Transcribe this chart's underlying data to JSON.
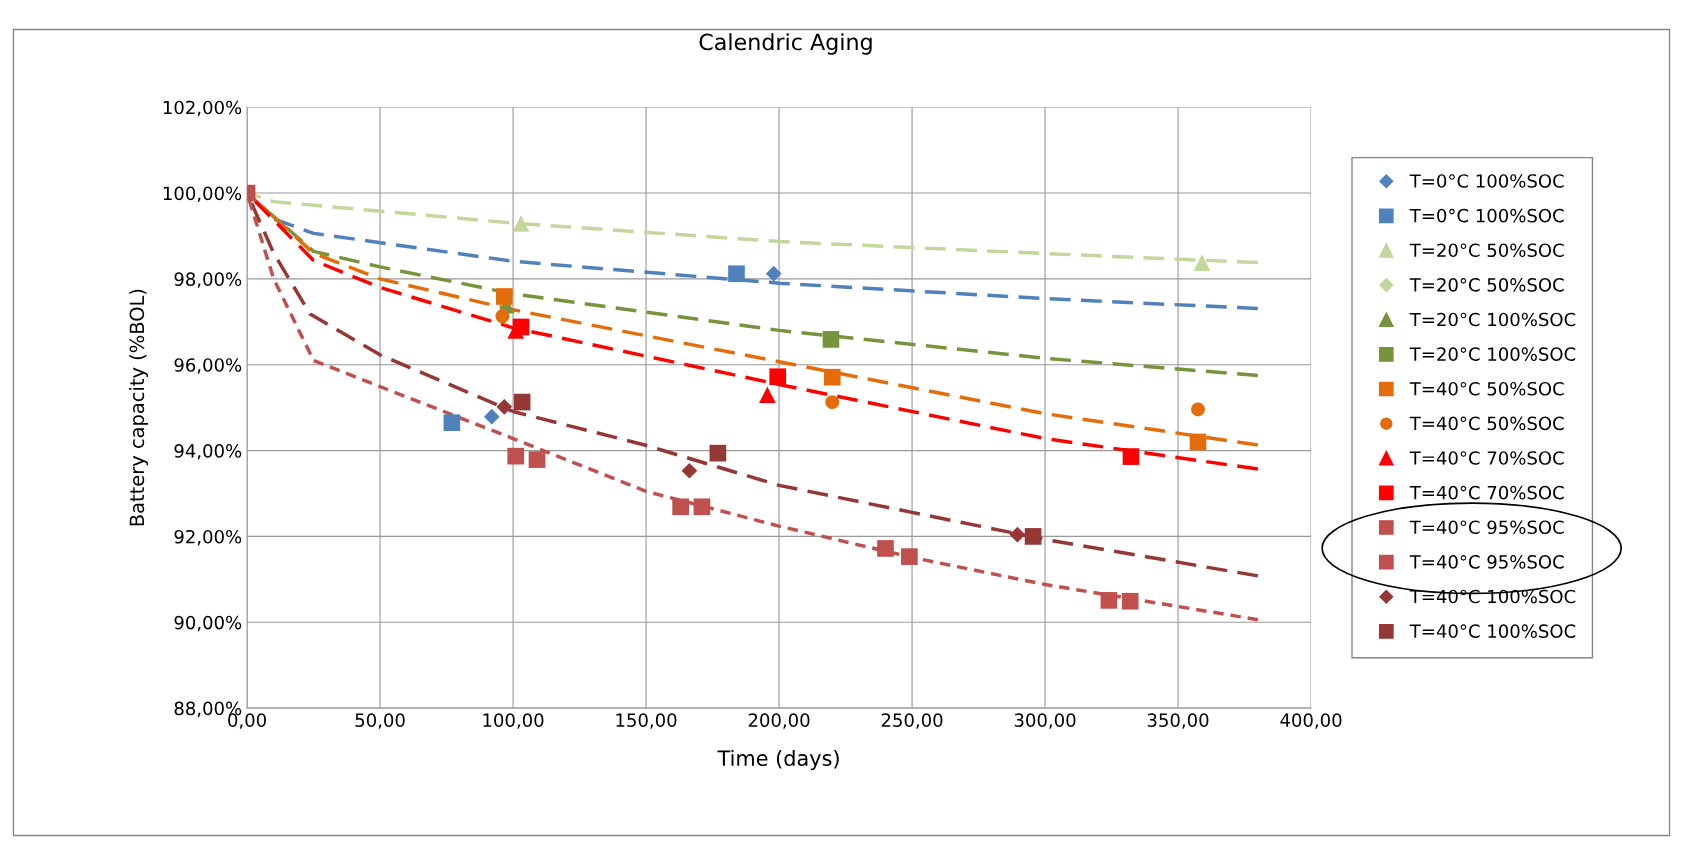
{
  "chart_data": {
    "type": "scatter",
    "title": "Calendric Aging",
    "xlabel": "Time (days)",
    "ylabel": "Battery capacity (%BOL)",
    "xlim": [
      0,
      400
    ],
    "xticks": [
      {
        "value": 0,
        "label": "0,00"
      },
      {
        "value": 50,
        "label": "50,00"
      },
      {
        "value": 100,
        "label": "100,00"
      },
      {
        "value": 150,
        "label": "150,00"
      },
      {
        "value": 200,
        "label": "200,00"
      },
      {
        "value": 250,
        "label": "250,00"
      },
      {
        "value": 300,
        "label": "300,00"
      },
      {
        "value": 350,
        "label": "350,00"
      },
      {
        "value": 400,
        "label": "400,00"
      }
    ],
    "ylim": [
      88,
      102
    ],
    "yticks": [
      {
        "value": 88,
        "label": "88,00%"
      },
      {
        "value": 90,
        "label": "90,00%"
      },
      {
        "value": 92,
        "label": "92,00%"
      },
      {
        "value": 94,
        "label": "94,00%"
      },
      {
        "value": 96,
        "label": "96,00%"
      },
      {
        "value": 98,
        "label": "98,00%"
      },
      {
        "value": 100,
        "label": "100,00%"
      },
      {
        "value": 102,
        "label": "102,00%"
      }
    ],
    "grid": true,
    "legend": "right",
    "series": [
      {
        "name": "T=0°C 100%SOC",
        "marker": "diamond",
        "color": "#4f81bd",
        "x": [
          92,
          198
        ],
        "values": [
          94.79,
          98.12
        ]
      },
      {
        "name": "T=0°C 100%SOC",
        "marker": "square",
        "color": "#4f81bd",
        "x": [
          77,
          184
        ],
        "values": [
          94.65,
          98.12
        ]
      },
      {
        "name": "T=20°C 50%SOC",
        "marker": "triangle",
        "color": "#c3d69b",
        "x": [
          103,
          359
        ],
        "values": [
          99.29,
          98.38
        ]
      },
      {
        "name": "T=20°C 50%SOC",
        "marker": "diamond",
        "color": "#c3d69b"
      },
      {
        "name": "T=20°C 100%SOC",
        "marker": "triangle",
        "color": "#77933c",
        "x": [
          97.5
        ],
        "values": [
          97.39
        ]
      },
      {
        "name": "T=20°C 100%SOC",
        "marker": "square",
        "color": "#77933c",
        "x": [
          219.5
        ],
        "values": [
          96.59
        ]
      },
      {
        "name": "T=40°C 50%SOC",
        "marker": "square",
        "color": "#e46c0a",
        "x": [
          96.7,
          220,
          357.5
        ],
        "values": [
          97.59,
          95.71,
          94.2
        ]
      },
      {
        "name": "T=40°C 50%SOC",
        "marker": "circle",
        "color": "#e46c0a",
        "x": [
          96,
          220,
          357.5
        ],
        "values": [
          97.13,
          95.13,
          94.96
        ]
      },
      {
        "name": "T=40°C 70%SOC",
        "marker": "triangle",
        "color": "#ff0000",
        "x": [
          101,
          195.6
        ],
        "values": [
          96.8,
          95.3
        ]
      },
      {
        "name": "T=40°C 70%SOC",
        "marker": "square",
        "color": "#ff0000",
        "x": [
          103,
          199.5,
          332.3
        ],
        "values": [
          96.88,
          95.72,
          93.86
        ]
      },
      {
        "name": "T=40°C 95%SOC",
        "marker": "square",
        "color": "#c0504d",
        "x": [
          101,
          163,
          240,
          324
        ],
        "values": [
          93.87,
          92.69,
          91.72,
          90.51
        ]
      },
      {
        "name": "T=40°C 95%SOC",
        "marker": "square",
        "color": "#c0504d",
        "x": [
          0,
          109,
          171,
          249,
          332
        ],
        "values": [
          100,
          93.79,
          92.69,
          91.53,
          90.49
        ]
      },
      {
        "name": "T=40°C 100%SOC",
        "marker": "diamond",
        "color": "#953735",
        "x": [
          96.7,
          166.3,
          289.6
        ],
        "values": [
          95.02,
          93.53,
          92.04
        ]
      },
      {
        "name": "T=40°C 100%SOC",
        "marker": "square",
        "color": "#953735",
        "x": [
          103.4,
          177,
          295.5
        ],
        "values": [
          95.13,
          93.94,
          92.0
        ]
      },
      {
        "type": "line",
        "line_style": "dashed",
        "color": "#4f81bd",
        "x": [
          0,
          10,
          25,
          100,
          200,
          300,
          380
        ],
        "values": [
          100,
          99.4,
          99.06,
          98.41,
          97.9,
          97.54,
          97.31
        ]
      },
      {
        "type": "line",
        "line_style": "dashed",
        "color": "#c3d69b",
        "x": [
          0,
          10,
          100,
          200,
          300,
          380
        ],
        "values": [
          100,
          99.8,
          99.3,
          98.87,
          98.59,
          98.38
        ]
      },
      {
        "type": "line",
        "line_style": "dashed",
        "color": "#77933c",
        "x": [
          0,
          25,
          50,
          100,
          200,
          300,
          380
        ],
        "values": [
          100,
          98.64,
          98.28,
          97.65,
          96.8,
          96.15,
          95.75
        ]
      },
      {
        "type": "line",
        "line_style": "dashed",
        "color": "#e46c0a",
        "x": [
          0,
          25,
          50,
          100,
          200,
          300,
          380
        ],
        "values": [
          100,
          98.6,
          98.0,
          97.28,
          96.07,
          94.86,
          94.13
        ]
      },
      {
        "type": "line",
        "line_style": "dashed",
        "color": "#ff0000",
        "x": [
          0,
          25,
          50,
          100,
          200,
          300,
          380
        ],
        "values": [
          100,
          98.43,
          97.8,
          96.86,
          95.54,
          94.28,
          93.57
        ]
      },
      {
        "type": "line",
        "line_style": "dashed",
        "color": "#953735",
        "x": [
          0,
          10,
          23.7,
          50,
          100,
          149.5,
          200,
          250,
          300,
          380
        ],
        "values": [
          100,
          98.6,
          97.18,
          96.23,
          94.91,
          94.13,
          93.19,
          92.56,
          91.93,
          91.08
        ]
      },
      {
        "type": "line",
        "line_style": "dotted",
        "color": "#c0504d",
        "x": [
          0,
          10,
          25,
          50,
          100,
          150,
          200,
          250,
          300,
          380
        ],
        "values": [
          100,
          98.0,
          96.1,
          95.49,
          94.28,
          93.05,
          92.24,
          91.51,
          90.88,
          90.06
        ]
      }
    ]
  }
}
